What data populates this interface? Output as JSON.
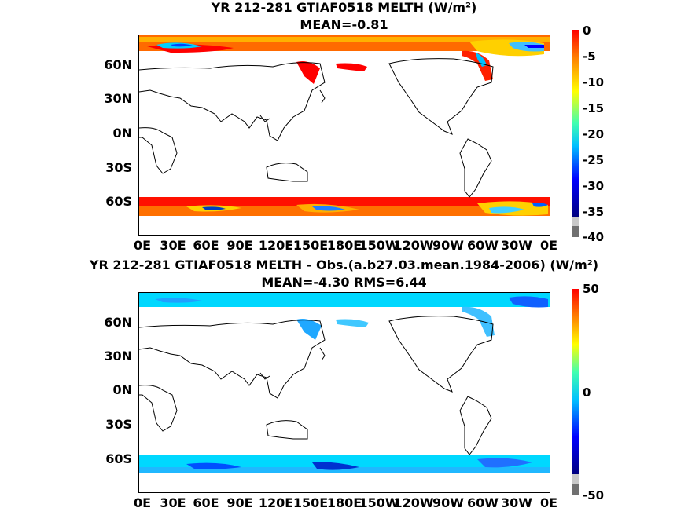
{
  "panels": [
    {
      "title_line1": "YR 212-281 GTIAF0518  MELTH (W/m²)",
      "title_line2": "MEAN=-0.81",
      "colorbar_ticks": [
        "0",
        "-5",
        "-10",
        "-15",
        "-20",
        "-25",
        "-30",
        "-35",
        "-40"
      ],
      "colormap": "jet",
      "value_range": [
        -40,
        0
      ]
    },
    {
      "title_line1": "YR 212-281 GTIAF0518 MELTH - Obs.(a.b27.03.mean.1984-2006) (W/m²)",
      "title_line2": "MEAN=-4.30 RMS=6.44",
      "colorbar_ticks": [
        "50",
        "0",
        "-50"
      ],
      "colormap": "jet",
      "value_range": [
        -50,
        50
      ]
    }
  ],
  "lat_labels": [
    "60N",
    "30N",
    "0N",
    "30S",
    "60S"
  ],
  "lon_labels": [
    "0E",
    "30E",
    "60E",
    "90E",
    "120E",
    "150E",
    "180E",
    "150W",
    "120W",
    "90W",
    "60W",
    "30W",
    "0E"
  ],
  "colors": {
    "jet_top": "#7f0000",
    "jet_red": "#ff0000",
    "jet_orange": "#ff8000",
    "jet_yellow": "#ffff00",
    "jet_cyan": "#00ffff",
    "jet_lightblue": "#00bfff",
    "jet_blue": "#0000ff",
    "jet_navy": "#00007f",
    "missing_gray": "#808080"
  }
}
